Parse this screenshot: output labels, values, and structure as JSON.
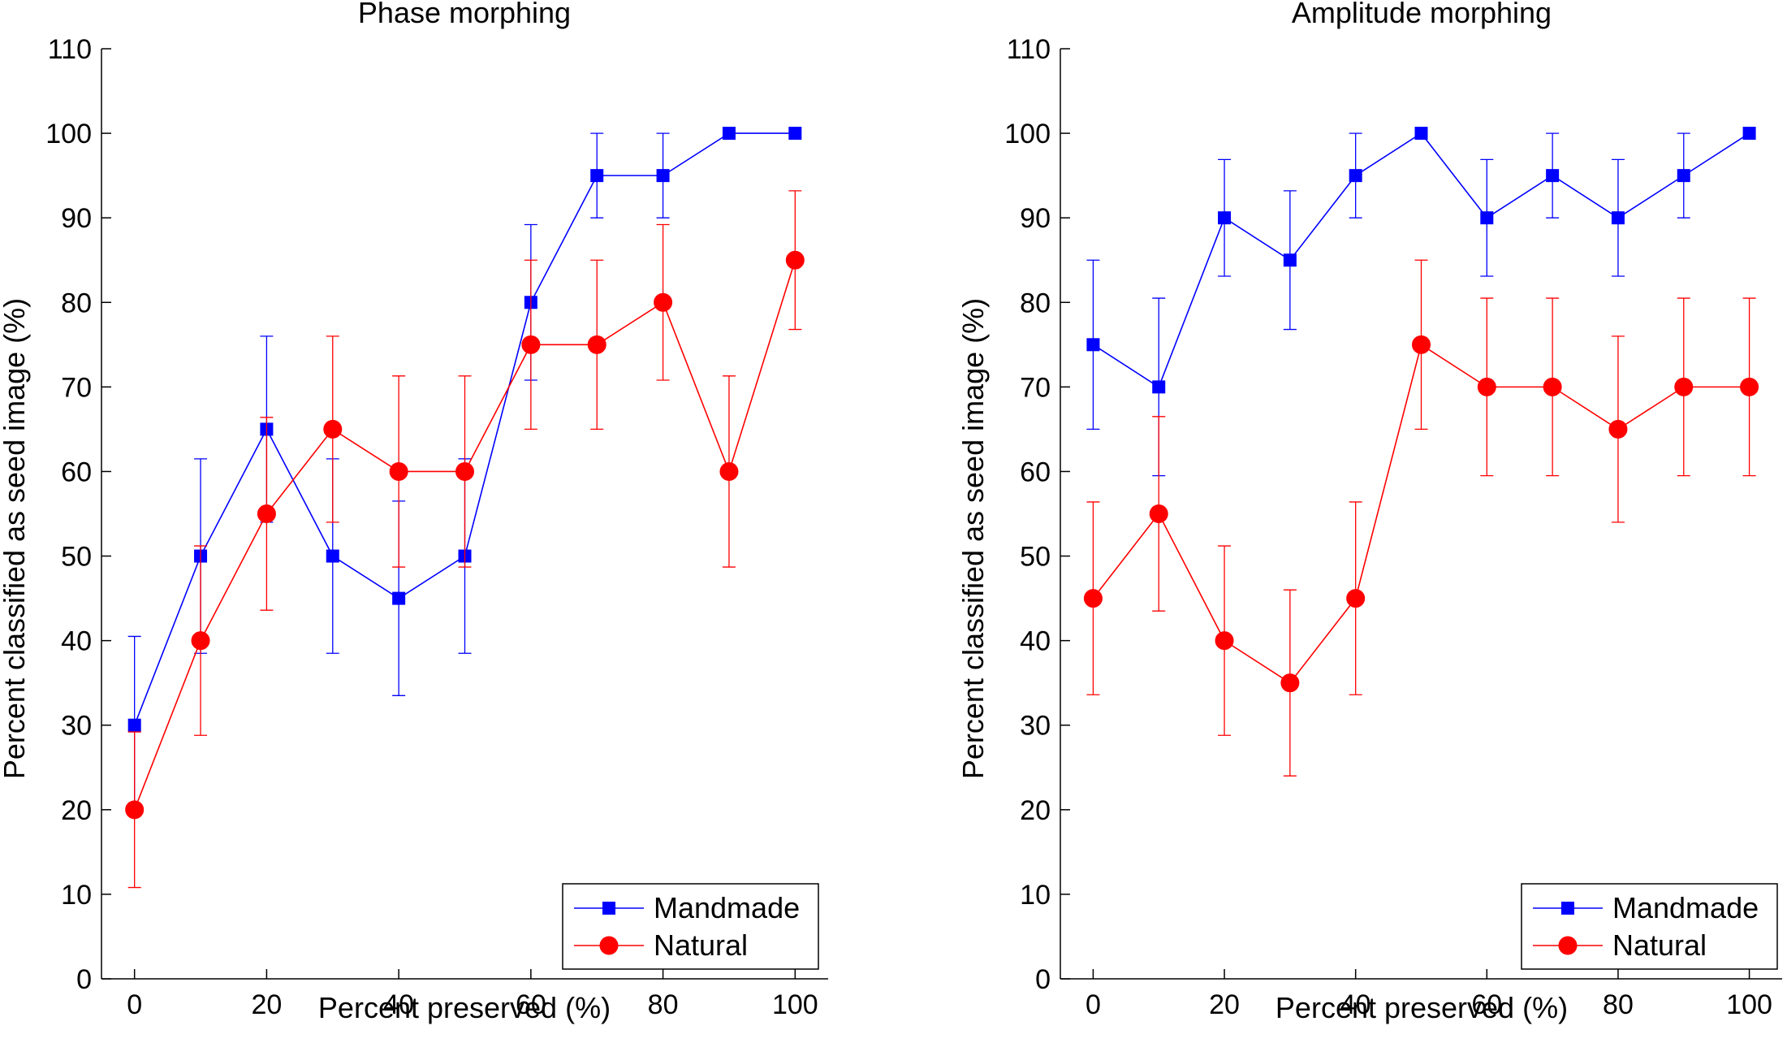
{
  "chart_data": [
    {
      "type": "line",
      "title": "Phase morphing",
      "xlabel": "Percent preserved (%)",
      "ylabel": "Percent classified as seed image (%)",
      "xlim": [
        -5,
        105
      ],
      "ylim": [
        0,
        110
      ],
      "xticks": [
        0,
        20,
        40,
        60,
        80,
        100
      ],
      "yticks": [
        0,
        10,
        20,
        30,
        40,
        50,
        60,
        70,
        80,
        90,
        100,
        110
      ],
      "grid": false,
      "legend_position": "bottom-right",
      "x": [
        0,
        10,
        20,
        30,
        40,
        50,
        60,
        70,
        80,
        90,
        100
      ],
      "series": [
        {
          "name": "Mandmade",
          "color": "#0000ff",
          "marker": "square",
          "values": [
            30,
            50,
            65,
            50,
            45,
            50,
            80,
            95,
            95,
            100,
            100
          ],
          "errors": [
            10.5,
            11.5,
            11,
            11.5,
            11.5,
            11.5,
            9.2,
            5,
            5,
            0,
            0
          ]
        },
        {
          "name": "Natural",
          "color": "#ff0000",
          "marker": "circle",
          "values": [
            20,
            40,
            55,
            65,
            60,
            60,
            75,
            75,
            80,
            60,
            85
          ],
          "errors": [
            9.2,
            11.2,
            11.4,
            11,
            11.3,
            11.3,
            10,
            10,
            9.2,
            11.3,
            8.2
          ]
        }
      ]
    },
    {
      "type": "line",
      "title": "Amplitude morphing",
      "xlabel": "Percent preserved (%)",
      "ylabel": "Percent classified as seed image (%)",
      "xlim": [
        -5,
        105
      ],
      "ylim": [
        0,
        110
      ],
      "xticks": [
        0,
        20,
        40,
        60,
        80,
        100
      ],
      "yticks": [
        0,
        10,
        20,
        30,
        40,
        50,
        60,
        70,
        80,
        90,
        100,
        110
      ],
      "grid": false,
      "legend_position": "bottom-right",
      "x": [
        0,
        10,
        20,
        30,
        40,
        50,
        60,
        70,
        80,
        90,
        100
      ],
      "series": [
        {
          "name": "Mandmade",
          "color": "#0000ff",
          "marker": "square",
          "values": [
            75,
            70,
            90,
            85,
            95,
            100,
            90,
            95,
            90,
            95,
            100
          ],
          "errors": [
            10,
            10.5,
            6.9,
            8.2,
            5,
            0,
            6.9,
            5,
            6.9,
            5,
            0
          ]
        },
        {
          "name": "Natural",
          "color": "#ff0000",
          "marker": "circle",
          "values": [
            45,
            55,
            40,
            35,
            45,
            75,
            70,
            70,
            65,
            70,
            70
          ],
          "errors": [
            11.4,
            11.5,
            11.2,
            11,
            11.4,
            10,
            10.5,
            10.5,
            11,
            10.5,
            10.5
          ]
        }
      ]
    }
  ]
}
